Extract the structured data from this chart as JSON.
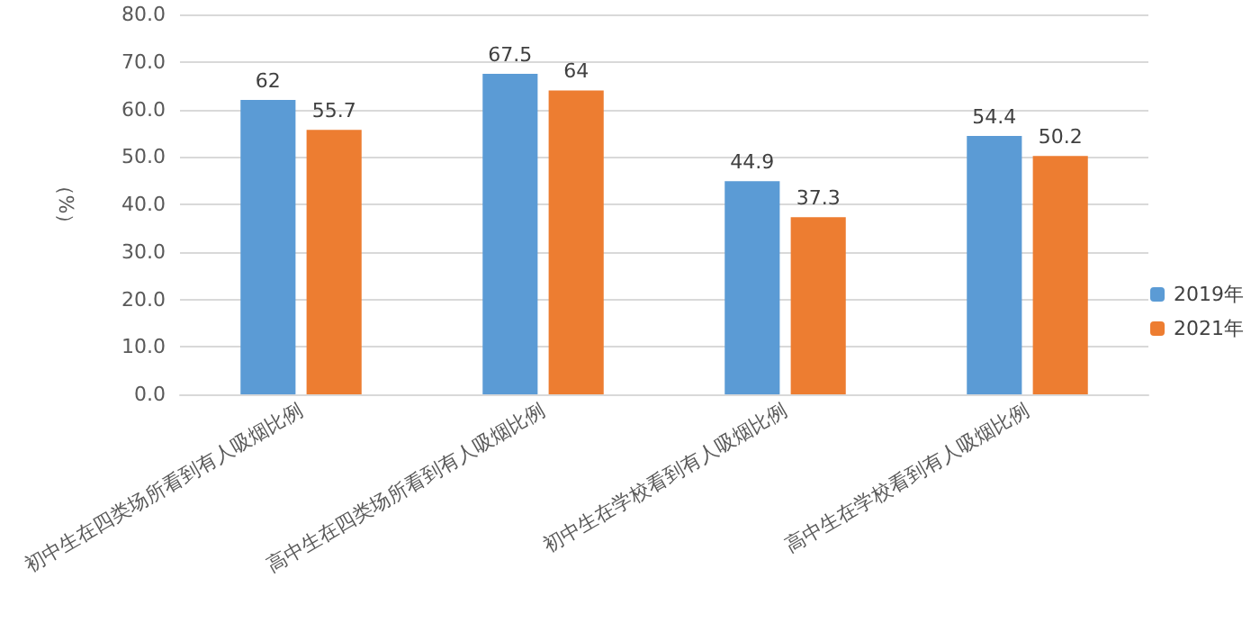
{
  "chart_data": {
    "type": "bar",
    "ylabel": "（%）",
    "categories": [
      "初中生在四类场所看到有人吸烟比例",
      "高中生在四类场所看到有人吸烟比例",
      "初中生在学校看到有人吸烟比例",
      "高中生在学校看到有人吸烟比例"
    ],
    "series": [
      {
        "name": "2019年",
        "color": "#5b9bd5",
        "values": [
          62,
          67.5,
          44.9,
          54.4
        ]
      },
      {
        "name": "2021年",
        "color": "#ed7d31",
        "values": [
          55.7,
          64,
          37.3,
          50.2
        ]
      }
    ],
    "ylim": [
      0,
      80
    ],
    "yticks": [
      {
        "value": 0,
        "label": "0.0"
      },
      {
        "value": 10,
        "label": "10.0"
      },
      {
        "value": 20,
        "label": "20.0"
      },
      {
        "value": 30,
        "label": "30.0"
      },
      {
        "value": 40,
        "label": "40.0"
      },
      {
        "value": 50,
        "label": "50.0"
      },
      {
        "value": 60,
        "label": "60.0"
      },
      {
        "value": 70,
        "label": "70.0"
      },
      {
        "value": 80,
        "label": "80.0"
      }
    ],
    "grid": "y",
    "legend": "right",
    "data_labels": true
  }
}
